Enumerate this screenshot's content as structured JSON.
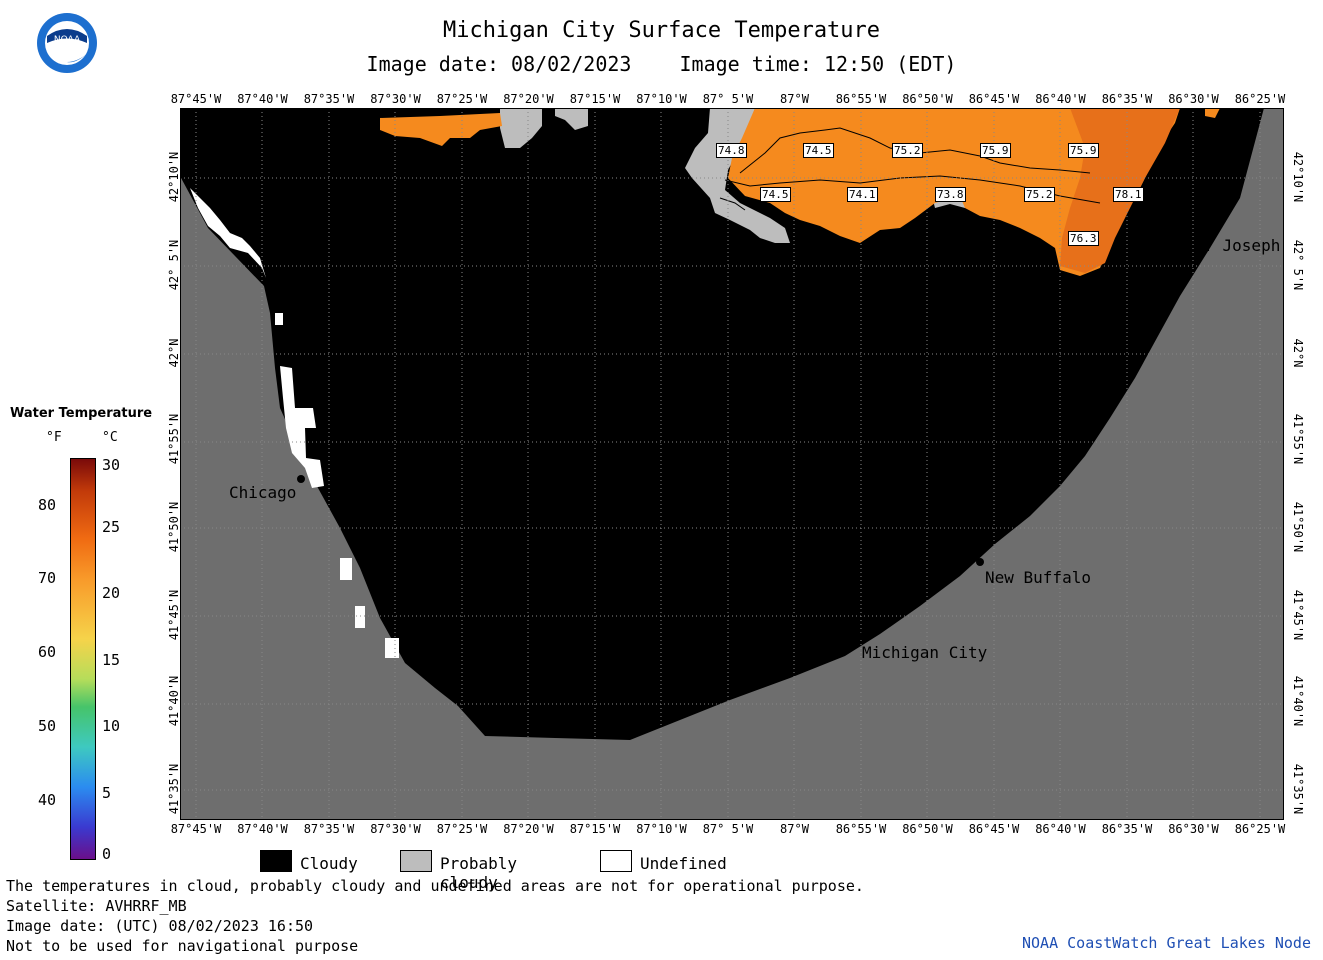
{
  "header": {
    "title": "Michigan City Surface Temperature",
    "image_date": "Image date: 08/02/2023",
    "image_time": "Image time: 12:50 (EDT)",
    "logo_text": "NOAA"
  },
  "axes": {
    "longitudes": [
      "87°45'W",
      "87°40'W",
      "87°35'W",
      "87°30'W",
      "87°25'W",
      "87°20'W",
      "87°15'W",
      "87°10'W",
      "87° 5'W",
      "87°W",
      "86°55'W",
      "86°50'W",
      "86°45'W",
      "86°40'W",
      "86°35'W",
      "86°30'W",
      "86°25'W"
    ],
    "latitudes": [
      "42°10'N",
      "42° 5'N",
      "42°N",
      "41°55'N",
      "41°50'N",
      "41°45'N",
      "41°40'N",
      "41°35'N"
    ]
  },
  "cities": {
    "chicago": "Chicago",
    "st_joseph": "St. Joseph",
    "new_buffalo": "New Buffalo",
    "michigan_city": "Michigan City"
  },
  "temperature_labels": [
    "74.8",
    "74.5",
    "75.2",
    "75.9",
    "75.9",
    "74.5",
    "74.1",
    "73.8",
    "75.2",
    "78.1",
    "76.3"
  ],
  "legend": {
    "title": "Water Temperature",
    "unit_f": "°F",
    "unit_c": "°C",
    "f_ticks": [
      "80",
      "70",
      "60",
      "50",
      "40"
    ],
    "c_ticks": [
      "30",
      "25",
      "20",
      "15",
      "10",
      "5",
      "0"
    ],
    "keys": [
      "Cloudy",
      "Probably cloudy",
      "Undefined"
    ]
  },
  "footer": {
    "note": "The temperatures in cloud, probably cloudy and undefined areas are not for operational purpose.",
    "satellite": "Satellite: AVHRRF_MB",
    "utc_date": "Image date: (UTC) 08/02/2023  16:50",
    "nav_warning": "Not to be used for navigational purpose",
    "credit": "NOAA CoastWatch Great Lakes Node"
  },
  "colors": {
    "cloudy": "#000000",
    "probably_cloudy": "#bdbdbd",
    "undefined": "#ffffff",
    "land": "#6e6e6e",
    "warm_water": "#f58a1e",
    "credit_blue": "#1f4fb4"
  }
}
